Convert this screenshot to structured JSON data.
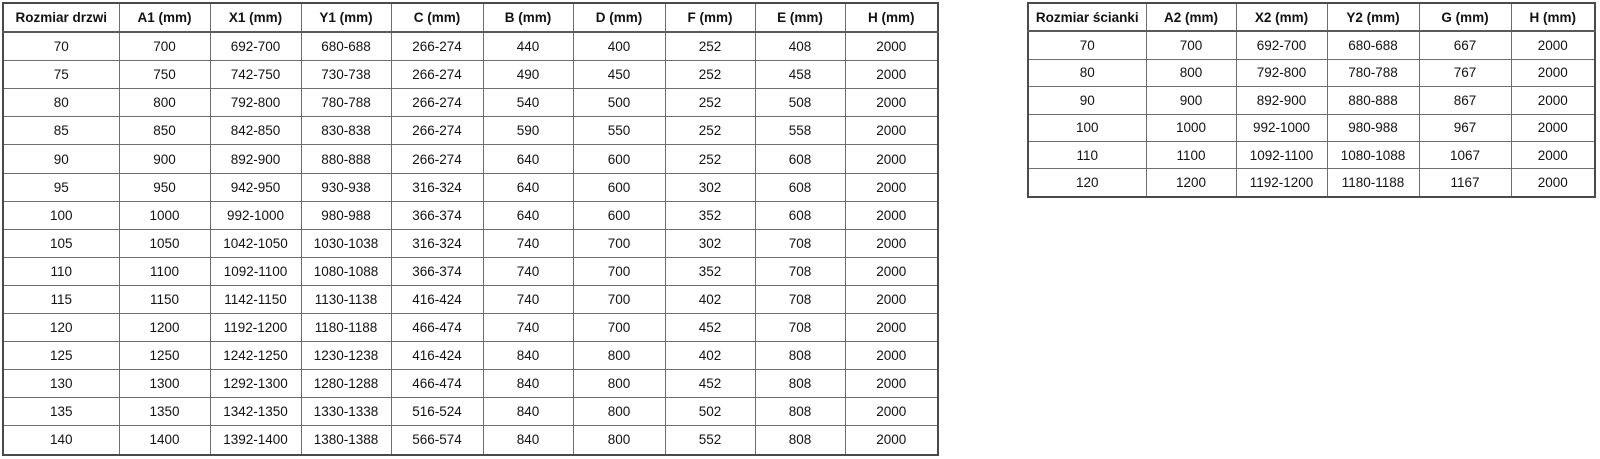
{
  "colors": {
    "background": "#ffffff",
    "border_outer": "#4a4a4a",
    "border_inner": "#6e6e6e",
    "text": "#121212"
  },
  "tables": {
    "door": {
      "title": "Rozmiar drzwi",
      "headers": [
        "Rozmiar drzwi",
        "A1 (mm)",
        "X1 (mm)",
        "Y1 (mm)",
        "C (mm)",
        "B (mm)",
        "D (mm)",
        "F (mm)",
        "E (mm)",
        "H (mm)"
      ],
      "rows": [
        [
          "70",
          "700",
          "692-700",
          "680-688",
          "266-274",
          "440",
          "400",
          "252",
          "408",
          "2000"
        ],
        [
          "75",
          "750",
          "742-750",
          "730-738",
          "266-274",
          "490",
          "450",
          "252",
          "458",
          "2000"
        ],
        [
          "80",
          "800",
          "792-800",
          "780-788",
          "266-274",
          "540",
          "500",
          "252",
          "508",
          "2000"
        ],
        [
          "85",
          "850",
          "842-850",
          "830-838",
          "266-274",
          "590",
          "550",
          "252",
          "558",
          "2000"
        ],
        [
          "90",
          "900",
          "892-900",
          "880-888",
          "266-274",
          "640",
          "600",
          "252",
          "608",
          "2000"
        ],
        [
          "95",
          "950",
          "942-950",
          "930-938",
          "316-324",
          "640",
          "600",
          "302",
          "608",
          "2000"
        ],
        [
          "100",
          "1000",
          "992-1000",
          "980-988",
          "366-374",
          "640",
          "600",
          "352",
          "608",
          "2000"
        ],
        [
          "105",
          "1050",
          "1042-1050",
          "1030-1038",
          "316-324",
          "740",
          "700",
          "302",
          "708",
          "2000"
        ],
        [
          "110",
          "1100",
          "1092-1100",
          "1080-1088",
          "366-374",
          "740",
          "700",
          "352",
          "708",
          "2000"
        ],
        [
          "115",
          "1150",
          "1142-1150",
          "1130-1138",
          "416-424",
          "740",
          "700",
          "402",
          "708",
          "2000"
        ],
        [
          "120",
          "1200",
          "1192-1200",
          "1180-1188",
          "466-474",
          "740",
          "700",
          "452",
          "708",
          "2000"
        ],
        [
          "125",
          "1250",
          "1242-1250",
          "1230-1238",
          "416-424",
          "840",
          "800",
          "402",
          "808",
          "2000"
        ],
        [
          "130",
          "1300",
          "1292-1300",
          "1280-1288",
          "466-474",
          "840",
          "800",
          "452",
          "808",
          "2000"
        ],
        [
          "135",
          "1350",
          "1342-1350",
          "1330-1338",
          "516-524",
          "840",
          "800",
          "502",
          "808",
          "2000"
        ],
        [
          "140",
          "1400",
          "1392-1400",
          "1380-1388",
          "566-574",
          "840",
          "800",
          "552",
          "808",
          "2000"
        ]
      ]
    },
    "wall": {
      "title": "Rozmiar ścianki",
      "headers": [
        "Rozmiar ścianki",
        "A2 (mm)",
        "X2 (mm)",
        "Y2 (mm)",
        "G (mm)",
        "H (mm)"
      ],
      "rows": [
        [
          "70",
          "700",
          "692-700",
          "680-688",
          "667",
          "2000"
        ],
        [
          "80",
          "800",
          "792-800",
          "780-788",
          "767",
          "2000"
        ],
        [
          "90",
          "900",
          "892-900",
          "880-888",
          "867",
          "2000"
        ],
        [
          "100",
          "1000",
          "992-1000",
          "980-988",
          "967",
          "2000"
        ],
        [
          "110",
          "1100",
          "1092-1100",
          "1080-1088",
          "1067",
          "2000"
        ],
        [
          "120",
          "1200",
          "1192-1200",
          "1180-1188",
          "1167",
          "2000"
        ]
      ]
    }
  }
}
